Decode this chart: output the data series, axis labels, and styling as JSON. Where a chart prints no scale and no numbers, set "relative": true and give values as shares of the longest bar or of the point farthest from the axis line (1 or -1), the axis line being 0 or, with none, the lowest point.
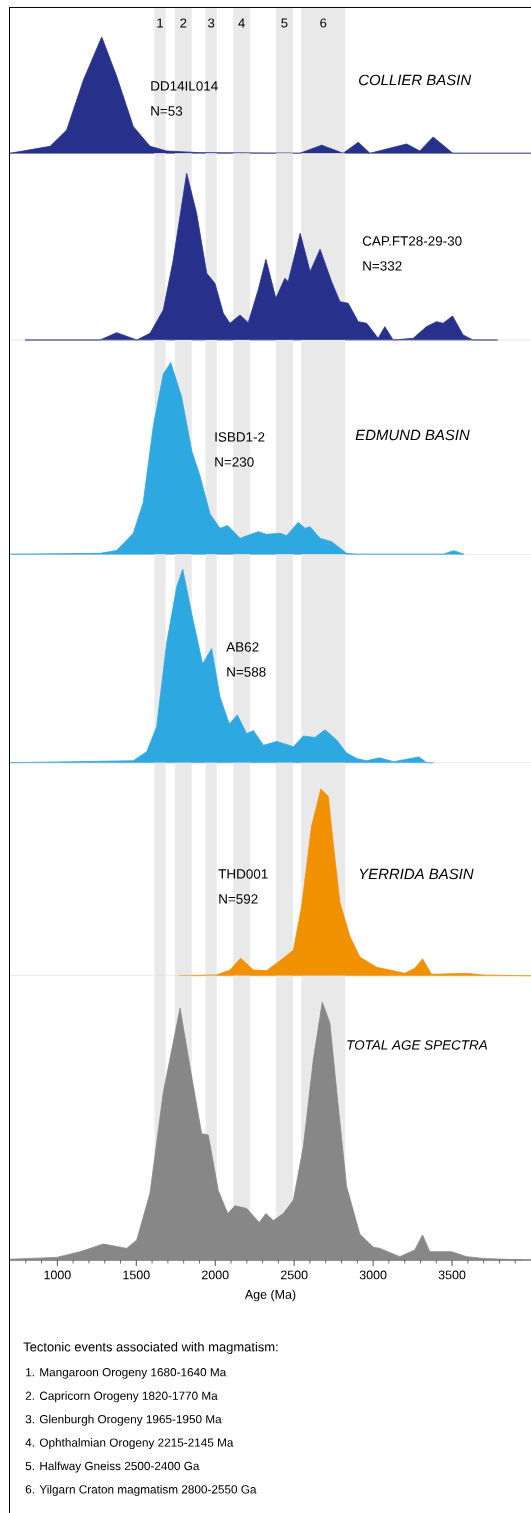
{
  "chart_data": [
    {
      "type": "area",
      "relative": true,
      "title": "COLLIER BASIN",
      "annotations": [
        "DD14IL014",
        "N=53"
      ],
      "color": "#27318c",
      "xlim": [
        700,
        4000
      ],
      "tick_labels": false,
      "bands": [
        {
          "axis": "x",
          "from": 1615,
          "to": 1685,
          "label": "1",
          "color": "#e9e9e9"
        },
        {
          "axis": "x",
          "from": 1745,
          "to": 1851,
          "label": "2",
          "color": "#e9e9e9"
        },
        {
          "axis": "x",
          "from": 1939,
          "to": 2009,
          "label": "3",
          "color": "#e9e9e9"
        },
        {
          "axis": "x",
          "from": 2114,
          "to": 2220,
          "label": "4",
          "color": "#e9e9e9"
        },
        {
          "axis": "x",
          "from": 2384,
          "to": 2492,
          "label": "5",
          "color": "#e9e9e9"
        },
        {
          "axis": "x",
          "from": 2545,
          "to": 2823,
          "label": "6",
          "color": "#e9e9e9"
        }
      ],
      "x": [
        700,
        954,
        1059,
        1165,
        1281,
        1376,
        1481,
        1587,
        1692,
        1903,
        2536,
        2674,
        2810,
        2906,
        2980,
        3212,
        3296,
        3380,
        3505,
        3950,
        4000
      ],
      "values": [
        0,
        0.06,
        0.2,
        0.63,
        1.0,
        0.66,
        0.23,
        0.06,
        0.02,
        0.005,
        0,
        0.07,
        0,
        0.095,
        0,
        0.08,
        0.02,
        0.14,
        0,
        0,
        0
      ]
    },
    {
      "type": "area",
      "relative": true,
      "annotations": [
        "CAP.FT28-29-30",
        "N=332"
      ],
      "color": "#27318c",
      "xlim": [
        700,
        4000
      ],
      "tick_labels": false,
      "bands": [
        {
          "axis": "x",
          "from": 1615,
          "to": 1685,
          "color": "#e9e9e9"
        },
        {
          "axis": "x",
          "from": 1745,
          "to": 1851,
          "color": "#e9e9e9"
        },
        {
          "axis": "x",
          "from": 1939,
          "to": 2009,
          "color": "#e9e9e9"
        },
        {
          "axis": "x",
          "from": 2114,
          "to": 2220,
          "color": "#e9e9e9"
        },
        {
          "axis": "x",
          "from": 2384,
          "to": 2492,
          "color": "#e9e9e9"
        },
        {
          "axis": "x",
          "from": 2545,
          "to": 2823,
          "color": "#e9e9e9"
        }
      ],
      "x": [
        796,
        1271,
        1376,
        1503,
        1587,
        1671,
        1734,
        1819,
        1882,
        1946,
        1998,
        2051,
        2093,
        2157,
        2209,
        2272,
        2321,
        2384,
        2441,
        2462,
        2538,
        2601,
        2664,
        2737,
        2790,
        2842,
        2906,
        2959,
        3032,
        3074,
        3127,
        3254,
        3338,
        3402,
        3443,
        3503,
        3570,
        3633,
        3788
      ],
      "values": [
        0,
        0,
        0.044,
        0,
        0.04,
        0.18,
        0.48,
        1.0,
        0.76,
        0.4,
        0.34,
        0.16,
        0.1,
        0.15,
        0.104,
        0.3,
        0.484,
        0.25,
        0.37,
        0.35,
        0.64,
        0.41,
        0.544,
        0.35,
        0.23,
        0.22,
        0.11,
        0.1,
        0.01,
        0.08,
        0,
        0.01,
        0.08,
        0.11,
        0.1,
        0.144,
        0.03,
        0,
        0
      ]
    },
    {
      "type": "area",
      "relative": true,
      "title": "EDMUND BASIN",
      "annotations": [
        "ISBD1-2",
        "N=230"
      ],
      "color": "#2ea8e0",
      "xlim": [
        700,
        4000
      ],
      "tick_labels": false,
      "bands": [
        {
          "axis": "x",
          "from": 1615,
          "to": 1685,
          "color": "#e9e9e9"
        },
        {
          "axis": "x",
          "from": 1745,
          "to": 1851,
          "color": "#e9e9e9"
        },
        {
          "axis": "x",
          "from": 1939,
          "to": 2009,
          "color": "#e9e9e9"
        },
        {
          "axis": "x",
          "from": 2114,
          "to": 2220,
          "color": "#e9e9e9"
        },
        {
          "axis": "x",
          "from": 2384,
          "to": 2492,
          "color": "#e9e9e9"
        },
        {
          "axis": "x",
          "from": 2545,
          "to": 2823,
          "color": "#e9e9e9"
        }
      ],
      "x": [
        700,
        1271,
        1376,
        1481,
        1544,
        1608,
        1671,
        1718,
        1787,
        1851,
        1903,
        1967,
        2030,
        2079,
        2157,
        2272,
        2325,
        2410,
        2452,
        2526,
        2568,
        2600,
        2664,
        2737,
        2832,
        2895,
        3443,
        3511,
        3576
      ],
      "values": [
        0,
        0.005,
        0.02,
        0.11,
        0.27,
        0.67,
        0.94,
        1.0,
        0.82,
        0.54,
        0.41,
        0.21,
        0.136,
        0.15,
        0.083,
        0.118,
        0.104,
        0.11,
        0.097,
        0.167,
        0.136,
        0.144,
        0.083,
        0.066,
        0.005,
        0,
        0,
        0.019,
        0
      ]
    },
    {
      "type": "area",
      "relative": true,
      "annotations": [
        "AB62",
        "N=588"
      ],
      "color": "#2ea8e0",
      "xlim": [
        700,
        4000
      ],
      "tick_labels": false,
      "bands": [
        {
          "axis": "x",
          "from": 1615,
          "to": 1685,
          "color": "#e9e9e9"
        },
        {
          "axis": "x",
          "from": 1745,
          "to": 1851,
          "color": "#e9e9e9"
        },
        {
          "axis": "x",
          "from": 1939,
          "to": 2009,
          "color": "#e9e9e9"
        },
        {
          "axis": "x",
          "from": 2114,
          "to": 2220,
          "color": "#e9e9e9"
        },
        {
          "axis": "x",
          "from": 2384,
          "to": 2492,
          "color": "#e9e9e9"
        },
        {
          "axis": "x",
          "from": 2545,
          "to": 2823,
          "color": "#e9e9e9"
        }
      ],
      "x": [
        700,
        1481,
        1566,
        1629,
        1692,
        1756,
        1794,
        1851,
        1920,
        1977,
        2030,
        2089,
        2140,
        2199,
        2242,
        2305,
        2390,
        2495,
        2558,
        2631,
        2695,
        2769,
        2832,
        2900,
        2960,
        3040,
        3130,
        3290,
        3340,
        3380
      ],
      "values": [
        0,
        0.01,
        0.057,
        0.186,
        0.617,
        0.91,
        1.0,
        0.77,
        0.51,
        0.59,
        0.34,
        0.2,
        0.247,
        0.15,
        0.166,
        0.09,
        0.11,
        0.083,
        0.138,
        0.13,
        0.17,
        0.117,
        0.05,
        0.02,
        0.01,
        0.025,
        0.005,
        0.03,
        0,
        0
      ]
    },
    {
      "type": "area",
      "relative": true,
      "title": "YERRIDA BASIN",
      "annotations": [
        "THD001",
        "N=592"
      ],
      "color": "#f29100",
      "xlim": [
        700,
        4000
      ],
      "tick_labels": false,
      "bands": [
        {
          "axis": "x",
          "from": 1615,
          "to": 1685,
          "color": "#e9e9e9"
        },
        {
          "axis": "x",
          "from": 1745,
          "to": 1851,
          "color": "#e9e9e9"
        },
        {
          "axis": "x",
          "from": 1939,
          "to": 2009,
          "color": "#e9e9e9"
        },
        {
          "axis": "x",
          "from": 2114,
          "to": 2220,
          "color": "#e9e9e9"
        },
        {
          "axis": "x",
          "from": 2384,
          "to": 2492,
          "color": "#e9e9e9"
        },
        {
          "axis": "x",
          "from": 2545,
          "to": 2823,
          "color": "#e9e9e9"
        }
      ],
      "x": [
        1770,
        2009,
        2093,
        2161,
        2242,
        2325,
        2431,
        2495,
        2547,
        2610,
        2669,
        2716,
        2747,
        2790,
        2853,
        2916,
        3022,
        3127,
        3201,
        3264,
        3313,
        3370,
        3592,
        3697,
        3950,
        4000
      ],
      "values": [
        0,
        0.004,
        0.03,
        0.093,
        0.03,
        0.027,
        0.093,
        0.1375,
        0.37,
        0.8,
        1.0,
        0.96,
        0.71,
        0.39,
        0.21,
        0.1,
        0.045,
        0.027,
        0.0125,
        0.04,
        0.09,
        0.007,
        0.0125,
        0.004,
        0,
        0
      ]
    },
    {
      "type": "area",
      "relative": true,
      "title": "TOTAL AGE SPECTRA",
      "xlabel": "Age (Ma)",
      "color": "#878787",
      "xlim": [
        700,
        4000
      ],
      "tick_labels": "x",
      "annotations": [
        "Tectonic events associated with magmatism:",
        "1. Mangaroon Orogeny 1680-1640 Ma",
        "2. Capricorn Orogeny 1820-1770 Ma",
        "3. Glenburgh Orogeny 1965-1950 Ma",
        "4. Ophthalmian Orogeny 2215-2145 Ma",
        "5. Halfway Gneiss 2500-2400 Ga",
        "6. Yilgarn Craton magmatism 2800-2550 Ga"
      ],
      "xticks": [
        {
          "value": 800,
          "label": null
        },
        {
          "value": 900,
          "label": null
        },
        1000,
        {
          "value": 1100,
          "label": null
        },
        {
          "value": 1200,
          "label": null
        },
        {
          "value": 1300,
          "label": null
        },
        {
          "value": 1400,
          "label": null
        },
        1500,
        {
          "value": 1600,
          "label": null
        },
        {
          "value": 1700,
          "label": null
        },
        {
          "value": 1800,
          "label": null
        },
        {
          "value": 1900,
          "label": null
        },
        2000,
        {
          "value": 2100,
          "label": null
        },
        {
          "value": 2200,
          "label": null
        },
        {
          "value": 2300,
          "label": null
        },
        {
          "value": 2400,
          "label": null
        },
        2500,
        {
          "value": 2600,
          "label": null
        },
        {
          "value": 2700,
          "label": null
        },
        {
          "value": 2800,
          "label": null
        },
        {
          "value": 2900,
          "label": null
        },
        3000,
        {
          "value": 3100,
          "label": null
        },
        {
          "value": 3200,
          "label": null
        },
        {
          "value": 3300,
          "label": null
        },
        {
          "value": 3400,
          "label": null
        },
        3500,
        {
          "value": 3600,
          "label": null
        },
        {
          "value": 3700,
          "label": null
        },
        {
          "value": 3800,
          "label": null
        },
        {
          "value": 3900,
          "label": null
        }
      ],
      "bands": [
        {
          "axis": "x",
          "from": 1615,
          "to": 1685,
          "color": "#e9e9e9"
        },
        {
          "axis": "x",
          "from": 1745,
          "to": 1851,
          "color": "#e9e9e9"
        },
        {
          "axis": "x",
          "from": 1939,
          "to": 2009,
          "color": "#e9e9e9"
        },
        {
          "axis": "x",
          "from": 2114,
          "to": 2220,
          "color": "#e9e9e9"
        },
        {
          "axis": "x",
          "from": 2384,
          "to": 2492,
          "color": "#e9e9e9"
        },
        {
          "axis": "x",
          "from": 2545,
          "to": 2823,
          "color": "#e9e9e9"
        }
      ],
      "x": [
        700,
        996,
        1144,
        1291,
        1439,
        1503,
        1587,
        1671,
        1777,
        1851,
        1914,
        1956,
        2019,
        2079,
        2125,
        2199,
        2279,
        2321,
        2368,
        2431,
        2495,
        2558,
        2621,
        2678,
        2726,
        2770,
        2832,
        2916,
        3000,
        3043,
        3169,
        3264,
        3313,
        3359,
        3497,
        3592,
        3697,
        3950
      ],
      "values": [
        0.003,
        0.01,
        0.032,
        0.062,
        0.045,
        0.078,
        0.26,
        0.65,
        0.977,
        0.71,
        0.49,
        0.485,
        0.27,
        0.18,
        0.21,
        0.2,
        0.145,
        0.18,
        0.153,
        0.18,
        0.233,
        0.44,
        0.776,
        1.0,
        0.92,
        0.65,
        0.285,
        0.1,
        0.05,
        0.045,
        0.013,
        0.039,
        0.097,
        0.032,
        0.032,
        0.013,
        0.006,
        0
      ]
    }
  ]
}
